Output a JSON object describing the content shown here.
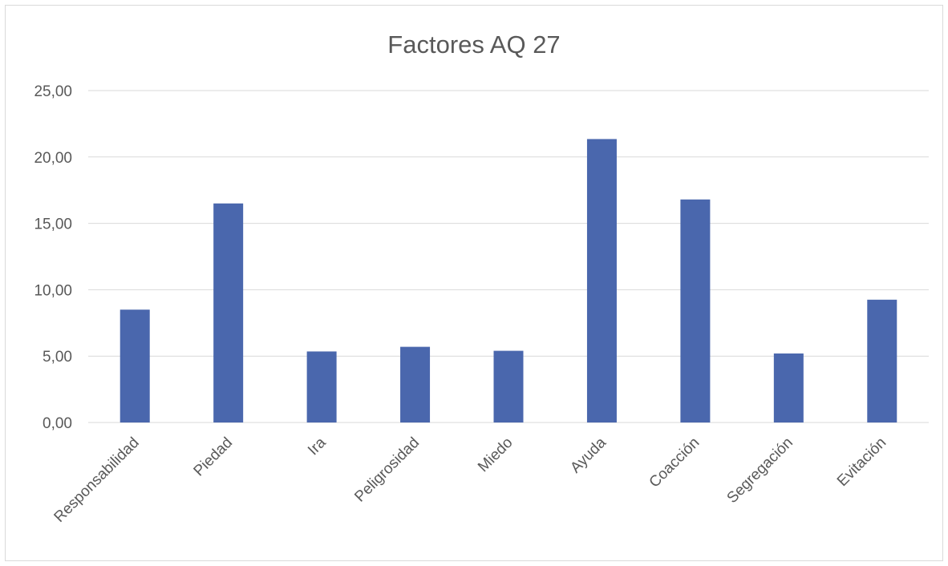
{
  "chart_data": {
    "type": "bar",
    "title": "Factores AQ 27",
    "xlabel": "",
    "ylabel": "",
    "categories": [
      "Responsabilidad",
      "Piedad",
      "Ira",
      "Peligrosidad",
      "Miedo",
      "Ayuda",
      "Coacción",
      "Segregación",
      "Evitación"
    ],
    "values": [
      8.5,
      16.5,
      5.35,
      5.7,
      5.4,
      21.35,
      16.8,
      5.2,
      9.25
    ],
    "ylim": [
      0,
      25
    ],
    "yticks": [
      "0,00",
      "5,00",
      "10,00",
      "15,00",
      "20,00",
      "25,00"
    ],
    "grid": true,
    "legend": "none",
    "bar_color": "#4a67ad",
    "grid_color": "#d9d9d9"
  }
}
